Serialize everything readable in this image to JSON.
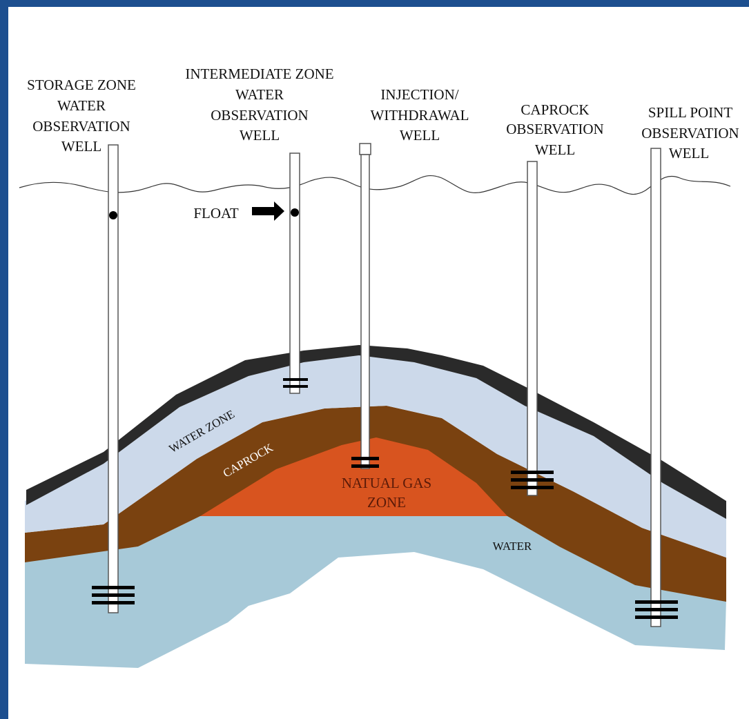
{
  "colors": {
    "frame_border": "#1d4f8f",
    "background": "#ffffff",
    "caprock_top_layer": "#2a2a2a",
    "water_zone": "#ccd9ea",
    "caprock": "#7a4210",
    "natural_gas_zone": "#d8541f",
    "water": "#a7c9d8",
    "well_casing": "#ffffff"
  },
  "wells": [
    {
      "id": "storage",
      "label_lines": [
        "STORAGE ZONE",
        "WATER",
        "OBSERVATION",
        "WELL"
      ],
      "has_float": true
    },
    {
      "id": "intermediate",
      "label_lines": [
        "INTERMEDIATE ZONE",
        "WATER",
        "OBSERVATION",
        "WELL"
      ],
      "has_float": true
    },
    {
      "id": "injection",
      "label_lines": [
        "INJECTION/",
        "WITHDRAWAL",
        "WELL"
      ],
      "has_float": false
    },
    {
      "id": "caprock",
      "label_lines": [
        "CAPROCK",
        "OBSERVATION",
        "WELL"
      ],
      "has_float": false
    },
    {
      "id": "spill",
      "label_lines": [
        "SPILL POINT",
        "OBSERVATION",
        "WELL"
      ],
      "has_float": false
    }
  ],
  "float_label": "FLOAT",
  "zones": {
    "water_zone": "WATER ZONE",
    "caprock": "CAPROCK",
    "gas_line1": "NATUAL GAS",
    "gas_line2": "ZONE",
    "water": "WATER"
  }
}
